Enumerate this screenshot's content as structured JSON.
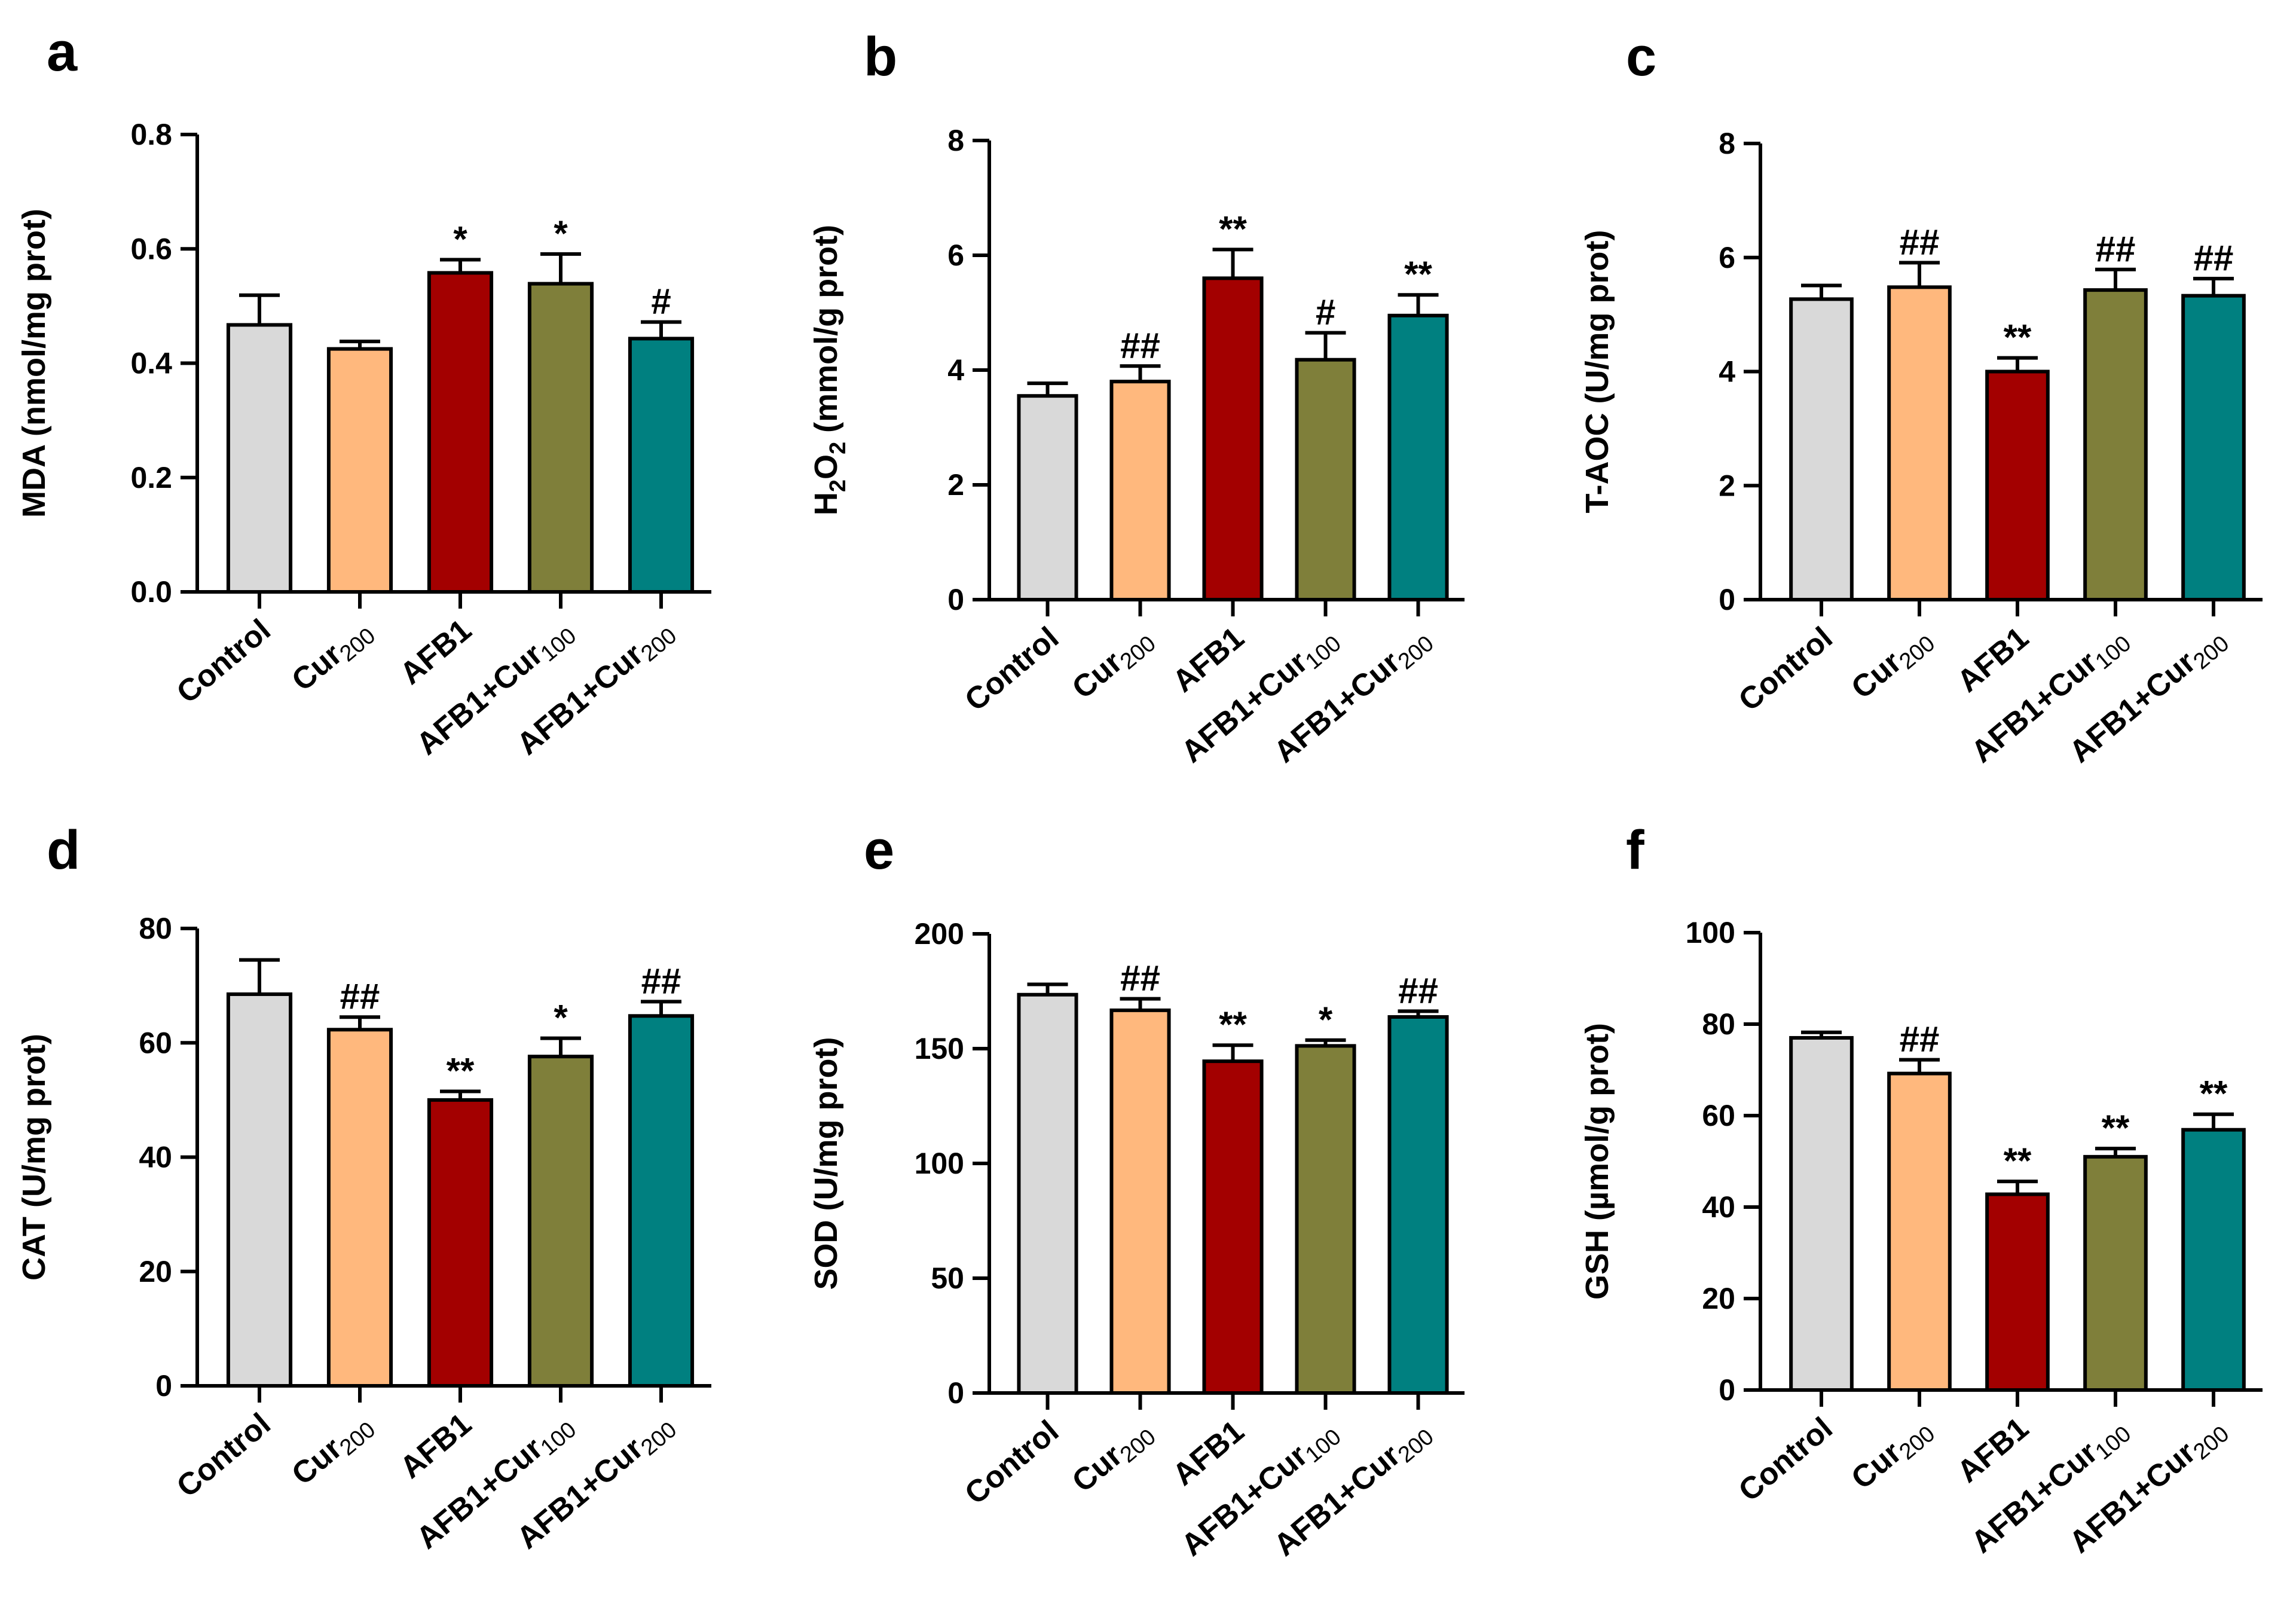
{
  "colors": {
    "Control": "#d9d9d9",
    "Cur200": "#ffb87d",
    "AFB1": "#a30000",
    "AFB1+Cur100": "#7f7f3a",
    "AFB1+Cur200": "#008080"
  },
  "chart_data": [
    {
      "type": "bar",
      "panel": "a",
      "ylabel": "MDA (nmol/mg prot)",
      "ylim": [
        0,
        0.8
      ],
      "yticks": [
        "0.0",
        "0.2",
        "0.4",
        "0.6",
        "0.8"
      ],
      "categories": [
        {
          "main": "Control",
          "sub": ""
        },
        {
          "main": "Cur",
          "sub": "200"
        },
        {
          "main": "AFB1",
          "sub": ""
        },
        {
          "main": "AFB1+Cur",
          "sub": "100"
        },
        {
          "main": "AFB1+Cur",
          "sub": "200"
        }
      ],
      "values": [
        0.467,
        0.425,
        0.558,
        0.539,
        0.443
      ],
      "errors": [
        0.052,
        0.013,
        0.023,
        0.052,
        0.029
      ],
      "significance": [
        "",
        "",
        "*",
        "*",
        "#"
      ]
    },
    {
      "type": "bar",
      "panel": "b",
      "ylabel": "H2O2 (mmol/g prot)",
      "ylabel_parts": [
        {
          "t": "H",
          "sub": false
        },
        {
          "t": "2",
          "sub": true
        },
        {
          "t": "O",
          "sub": false
        },
        {
          "t": "2",
          "sub": true
        },
        {
          "t": " (mmol/g prot)",
          "sub": false
        }
      ],
      "ylim": [
        0,
        8
      ],
      "yticks": [
        "0",
        "2",
        "4",
        "6",
        "8"
      ],
      "categories": [
        {
          "main": "Control",
          "sub": ""
        },
        {
          "main": "Cur",
          "sub": "200"
        },
        {
          "main": "AFB1",
          "sub": ""
        },
        {
          "main": "AFB1+Cur",
          "sub": "100"
        },
        {
          "main": "AFB1+Cur",
          "sub": "200"
        }
      ],
      "values": [
        3.55,
        3.8,
        5.6,
        4.18,
        4.95
      ],
      "errors": [
        0.22,
        0.27,
        0.5,
        0.47,
        0.36
      ],
      "significance": [
        "",
        "##",
        "**",
        "#",
        "**"
      ]
    },
    {
      "type": "bar",
      "panel": "c",
      "ylabel": "T-AOC (U/mg prot)",
      "ylim": [
        0,
        8
      ],
      "yticks": [
        "0",
        "2",
        "4",
        "6",
        "8"
      ],
      "categories": [
        {
          "main": "Control",
          "sub": ""
        },
        {
          "main": "Cur",
          "sub": "200"
        },
        {
          "main": "AFB1",
          "sub": ""
        },
        {
          "main": "AFB1+Cur",
          "sub": "100"
        },
        {
          "main": "AFB1+Cur",
          "sub": "200"
        }
      ],
      "values": [
        5.27,
        5.48,
        4.0,
        5.43,
        5.33
      ],
      "errors": [
        0.24,
        0.43,
        0.24,
        0.36,
        0.3
      ],
      "significance": [
        "",
        "##",
        "**",
        "##",
        "##"
      ]
    },
    {
      "type": "bar",
      "panel": "d",
      "ylabel": "CAT (U/mg prot)",
      "ylim": [
        0,
        80
      ],
      "yticks": [
        "0",
        "20",
        "40",
        "60",
        "80"
      ],
      "categories": [
        {
          "main": "Control",
          "sub": ""
        },
        {
          "main": "Cur",
          "sub": "200"
        },
        {
          "main": "AFB1",
          "sub": ""
        },
        {
          "main": "AFB1+Cur",
          "sub": "100"
        },
        {
          "main": "AFB1+Cur",
          "sub": "200"
        }
      ],
      "values": [
        68.5,
        62.3,
        50.0,
        57.6,
        64.7
      ],
      "errors": [
        6.0,
        2.2,
        1.5,
        3.2,
        2.5
      ],
      "significance": [
        "",
        "##",
        "**",
        "*",
        "##"
      ]
    },
    {
      "type": "bar",
      "panel": "e",
      "ylabel": "SOD (U/mg prot)",
      "ylim": [
        0,
        200
      ],
      "yticks": [
        "0",
        "50",
        "100",
        "150",
        "200"
      ],
      "categories": [
        {
          "main": "Control",
          "sub": ""
        },
        {
          "main": "Cur",
          "sub": "200"
        },
        {
          "main": "AFB1",
          "sub": ""
        },
        {
          "main": "AFB1+Cur",
          "sub": "100"
        },
        {
          "main": "AFB1+Cur",
          "sub": "200"
        }
      ],
      "values": [
        173.5,
        166.7,
        144.5,
        151.2,
        163.8
      ],
      "errors": [
        4.5,
        5.0,
        7.0,
        2.5,
        2.5
      ],
      "significance": [
        "",
        "##",
        "**",
        "*",
        "##"
      ]
    },
    {
      "type": "bar",
      "panel": "f",
      "ylabel": "GSH (µmol/g prot)",
      "ylim": [
        0,
        100
      ],
      "yticks": [
        "0",
        "20",
        "40",
        "60",
        "80",
        "100"
      ],
      "categories": [
        {
          "main": "Control",
          "sub": ""
        },
        {
          "main": "Cur",
          "sub": "200"
        },
        {
          "main": "AFB1",
          "sub": ""
        },
        {
          "main": "AFB1+Cur",
          "sub": "100"
        },
        {
          "main": "AFB1+Cur",
          "sub": "200"
        }
      ],
      "values": [
        77.0,
        69.2,
        42.8,
        51.0,
        56.9
      ],
      "errors": [
        1.2,
        3.0,
        2.8,
        1.8,
        3.4
      ],
      "significance": [
        "",
        "##",
        "**",
        "**",
        "**"
      ]
    }
  ]
}
